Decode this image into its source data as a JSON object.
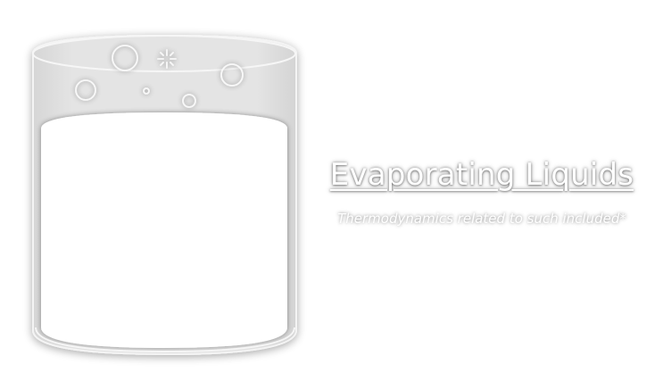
{
  "title": "Evaporating Liquids",
  "subtitle": "Thermodynamics related to such included*",
  "icons": {
    "beaker": "beaker-icon",
    "bubbles": "bubble-icon",
    "sparkle": "sparkle-icon"
  },
  "colors": {
    "background": "#ffffff",
    "glass": "#e6e6e6",
    "liquid": "#ffffff",
    "text": "#ffffff",
    "glow": "#9a9a9a"
  }
}
